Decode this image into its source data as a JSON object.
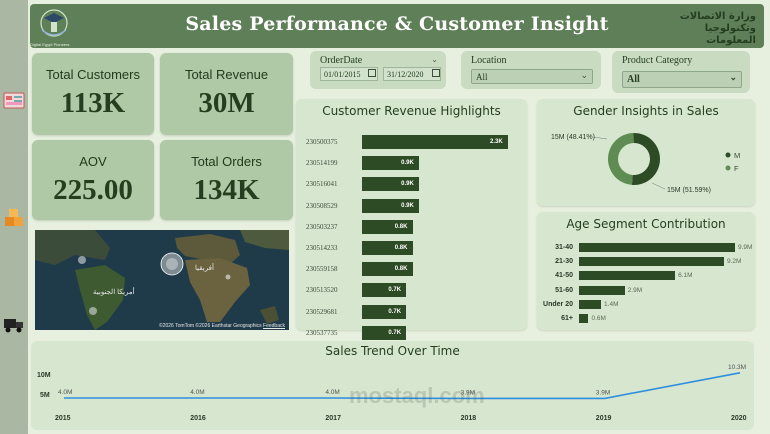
{
  "header": {
    "title": "Sales Performance & Customer Insight",
    "logo_left_caption": "Digital Egypt Pioneers",
    "logo_right_line1": "وزارة الاتصالات",
    "logo_right_line2": "وتكنولوجيا المعلومات"
  },
  "kpis": {
    "total_customers": {
      "label": "Total Customers",
      "value": "113K"
    },
    "total_revenue": {
      "label": "Total Revenue",
      "value": "30M"
    },
    "aov": {
      "label": "AOV",
      "value": "225.00"
    },
    "total_orders": {
      "label": "Total Orders",
      "value": "134K"
    }
  },
  "filters": {
    "order_date": {
      "label": "OrderDate",
      "start": "01/01/2015",
      "end": "31/12/2020"
    },
    "location": {
      "label": "Location",
      "value": "All"
    },
    "product_category": {
      "label": "Product Category",
      "value": "All"
    }
  },
  "map": {
    "attribution": "©2026 TomTom ©2026 Earthstar Geographics",
    "feedback": "Feedback",
    "label_america": "أمريكا الجنوبية",
    "label_africa": "أفريقيا"
  },
  "customer_revenue": {
    "title": "Customer Revenue Highlights",
    "chart_data": {
      "type": "bar",
      "orientation": "horizontal",
      "categories": [
        "230500375",
        "230514199",
        "230516041",
        "230508529",
        "230503237",
        "230514233",
        "230559158",
        "230513520",
        "230529681",
        "230537735"
      ],
      "values": [
        2.3,
        0.9,
        0.9,
        0.9,
        0.8,
        0.8,
        0.8,
        0.7,
        0.7,
        0.7
      ],
      "labels": [
        "2.3K",
        "0.9K",
        "0.9K",
        "0.9K",
        "0.8K",
        "0.8K",
        "0.8K",
        "0.7K",
        "0.7K",
        "0.7K"
      ],
      "unit": "K"
    }
  },
  "gender": {
    "title": "Gender Insights in Sales",
    "chart_data": {
      "type": "pie",
      "variant": "donut",
      "slices": [
        {
          "name": "M",
          "value": 51.59,
          "label": "15M (51.59%)",
          "color": "#2d4b24"
        },
        {
          "name": "F",
          "value": 48.41,
          "label": "15M (48.41%)",
          "color": "#5e8c52"
        }
      ]
    }
  },
  "age": {
    "title": "Age Segment Contribution",
    "chart_data": {
      "type": "bar",
      "orientation": "horizontal",
      "categories": [
        "31-40",
        "21-30",
        "41-50",
        "51-60",
        "Under 20",
        "61+"
      ],
      "values": [
        9.9,
        9.2,
        6.1,
        2.9,
        1.4,
        0.6
      ],
      "labels": [
        "9.9M",
        "9.2M",
        "6.1M",
        "2.9M",
        "1.4M",
        "0.6M"
      ],
      "unit": "M"
    }
  },
  "trend": {
    "title": "Sales Trend Over Time",
    "chart_data": {
      "type": "line",
      "x": [
        "2015",
        "2016",
        "2017",
        "2018",
        "2019",
        "2020"
      ],
      "values": [
        4.0,
        4.0,
        4.0,
        3.9,
        3.9,
        10.3
      ],
      "labels": [
        "4.0M",
        "4.0M",
        "4.0M",
        "3.9M",
        "3.9M",
        "10.3M"
      ],
      "yticks": [
        "10M",
        "5M"
      ],
      "ylim": [
        0,
        11
      ],
      "color": "#2e8fe0"
    }
  },
  "watermark": "mostaql.com"
}
